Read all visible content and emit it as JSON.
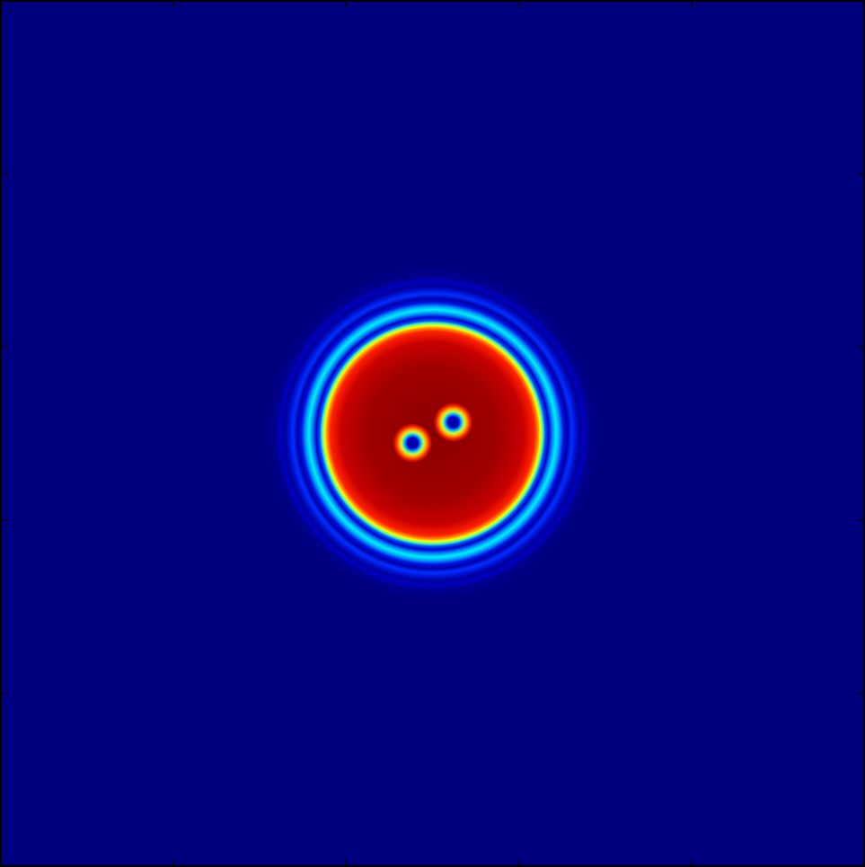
{
  "chart_data": {
    "type": "heatmap",
    "title": "",
    "xlabel": "",
    "ylabel": "",
    "colormap": "jet",
    "grid": false,
    "axes_ticks_labeled": false,
    "tick_count_per_side": 4,
    "background_value": 0.0,
    "central_disk": {
      "value": 1.0,
      "radius_fraction_of_width": 0.118,
      "center_fraction": [
        0.5,
        0.5
      ]
    },
    "rings": [
      {
        "radius_fraction_of_width": 0.142,
        "value": 0.45
      },
      {
        "radius_fraction_of_width": 0.158,
        "value": 0.25
      },
      {
        "radius_fraction_of_width": 0.176,
        "value": 0.12
      }
    ],
    "vortices": [
      {
        "center_fraction": [
          0.477,
          0.511
        ],
        "core_value": 0.0
      },
      {
        "center_fraction": [
          0.524,
          0.487
        ],
        "core_value": 0.0
      }
    ],
    "colors": {
      "background": "#00007f",
      "disk_edge": "#ff2000",
      "disk_center": "#900000",
      "frame": "#000000"
    }
  }
}
